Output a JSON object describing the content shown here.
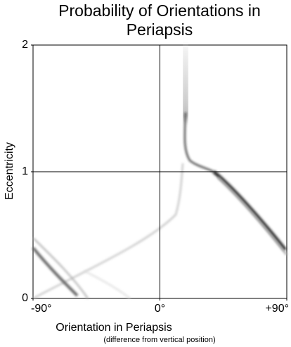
{
  "chart_data": {
    "type": "density",
    "title": "Probability of Orientations in Periapsis",
    "xlabel": "Orientation in Periapsis",
    "xlabel_note": "(difference from vertical position)",
    "ylabel": "Eccentricity",
    "xlim": [
      -90,
      90
    ],
    "ylim": [
      0,
      2
    ],
    "xticks": [
      {
        "value": -90,
        "label": "-90°"
      },
      {
        "value": 0,
        "label": "0°"
      },
      {
        "value": 90,
        "label": "+90°"
      }
    ],
    "yticks": [
      0,
      1,
      2
    ],
    "reference_lines": {
      "x": 0,
      "y": 1
    }
  }
}
